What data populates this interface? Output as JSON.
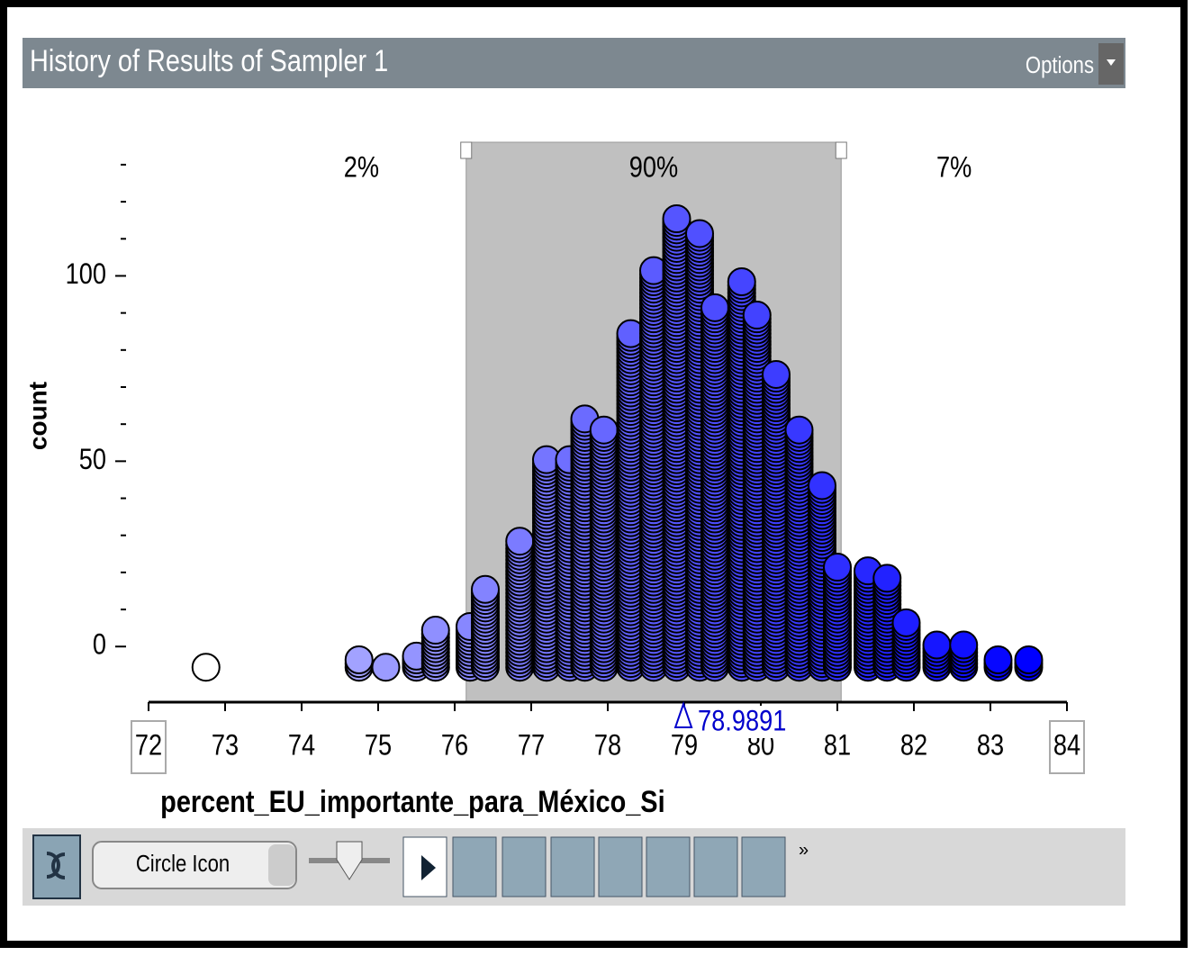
{
  "header": {
    "title": "History of Results of Sampler 1",
    "options": "Options"
  },
  "chart_data": {
    "type": "dotplot",
    "x_label": "percent_EU_importante_para_México_Si",
    "y_label": "count",
    "x": [
      72.75,
      74.75,
      75.1,
      75.5,
      75.75,
      76.2,
      76.4,
      76.85,
      77.2,
      77.5,
      77.7,
      77.95,
      78.3,
      78.6,
      78.9,
      79.2,
      79.4,
      79.75,
      79.95,
      80.2,
      80.5,
      80.8,
      81.0,
      81.4,
      81.65,
      81.9,
      82.3,
      82.65,
      83.1,
      83.5
    ],
    "values": [
      1,
      3,
      1,
      4,
      11,
      12,
      22,
      35,
      57,
      57,
      68,
      65,
      91,
      108,
      122,
      118,
      98,
      105,
      96,
      80,
      65,
      50,
      28,
      27,
      25,
      13,
      7,
      7,
      3,
      3
    ],
    "color_low": "#ffffff",
    "color_high": "#0000ff",
    "xlim": [
      72,
      84
    ],
    "xticks": [
      72,
      73,
      74,
      75,
      76,
      77,
      78,
      79,
      80,
      81,
      82,
      83,
      84
    ],
    "ylim": [
      -15,
      138
    ],
    "yticks": [
      0,
      50,
      100
    ],
    "yminor": [
      10,
      20,
      30,
      40,
      60,
      70,
      80,
      90,
      110,
      120,
      130
    ],
    "dividers": [
      76.15,
      81.05
    ],
    "region_labels": [
      "2%",
      "90%",
      "7%"
    ],
    "reference_value": 78.9891
  },
  "toolbar": {
    "shape_menu": "Circle Icon",
    "more": "»"
  }
}
